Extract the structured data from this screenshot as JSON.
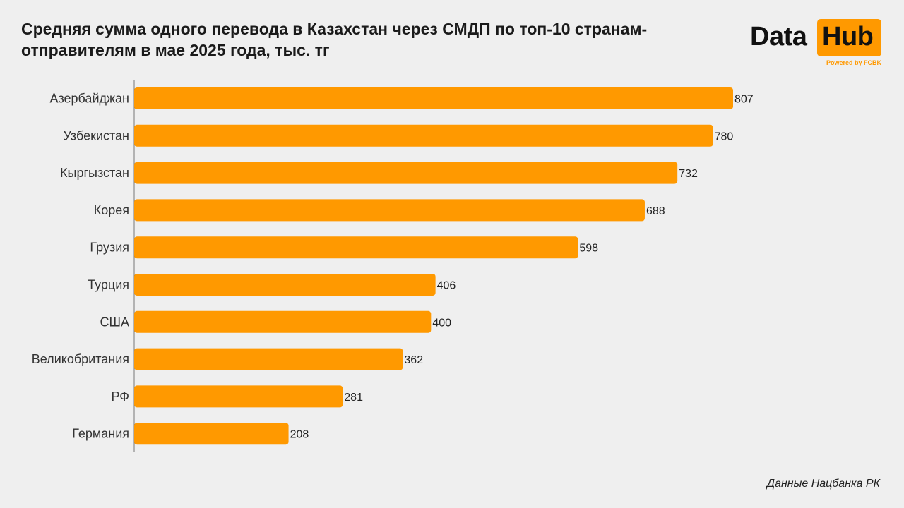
{
  "chart_data": {
    "type": "bar",
    "orientation": "horizontal",
    "title": "Средняя сумма одного перевода в Казахстан через СМДП по топ-10 странам-отправителям в мае 2025 года, тыс. тг",
    "categories": [
      "Азербайджан",
      "Узбекистан",
      "Кыргызстан",
      "Корея",
      "Грузия",
      "Турция",
      "США",
      "Великобритания",
      "РФ",
      "Германия"
    ],
    "values": [
      807,
      780,
      732,
      688,
      598,
      406,
      400,
      362,
      281,
      208
    ],
    "bar_color": "#ff9900",
    "xlim": [
      0,
      807
    ],
    "grid": false,
    "legend": "none"
  },
  "logo": {
    "word1": "Data",
    "word2": "Hub",
    "tagline": "Powered by FCBK",
    "accent": "#ff9900"
  },
  "source": "Данные Нацбанка РК"
}
